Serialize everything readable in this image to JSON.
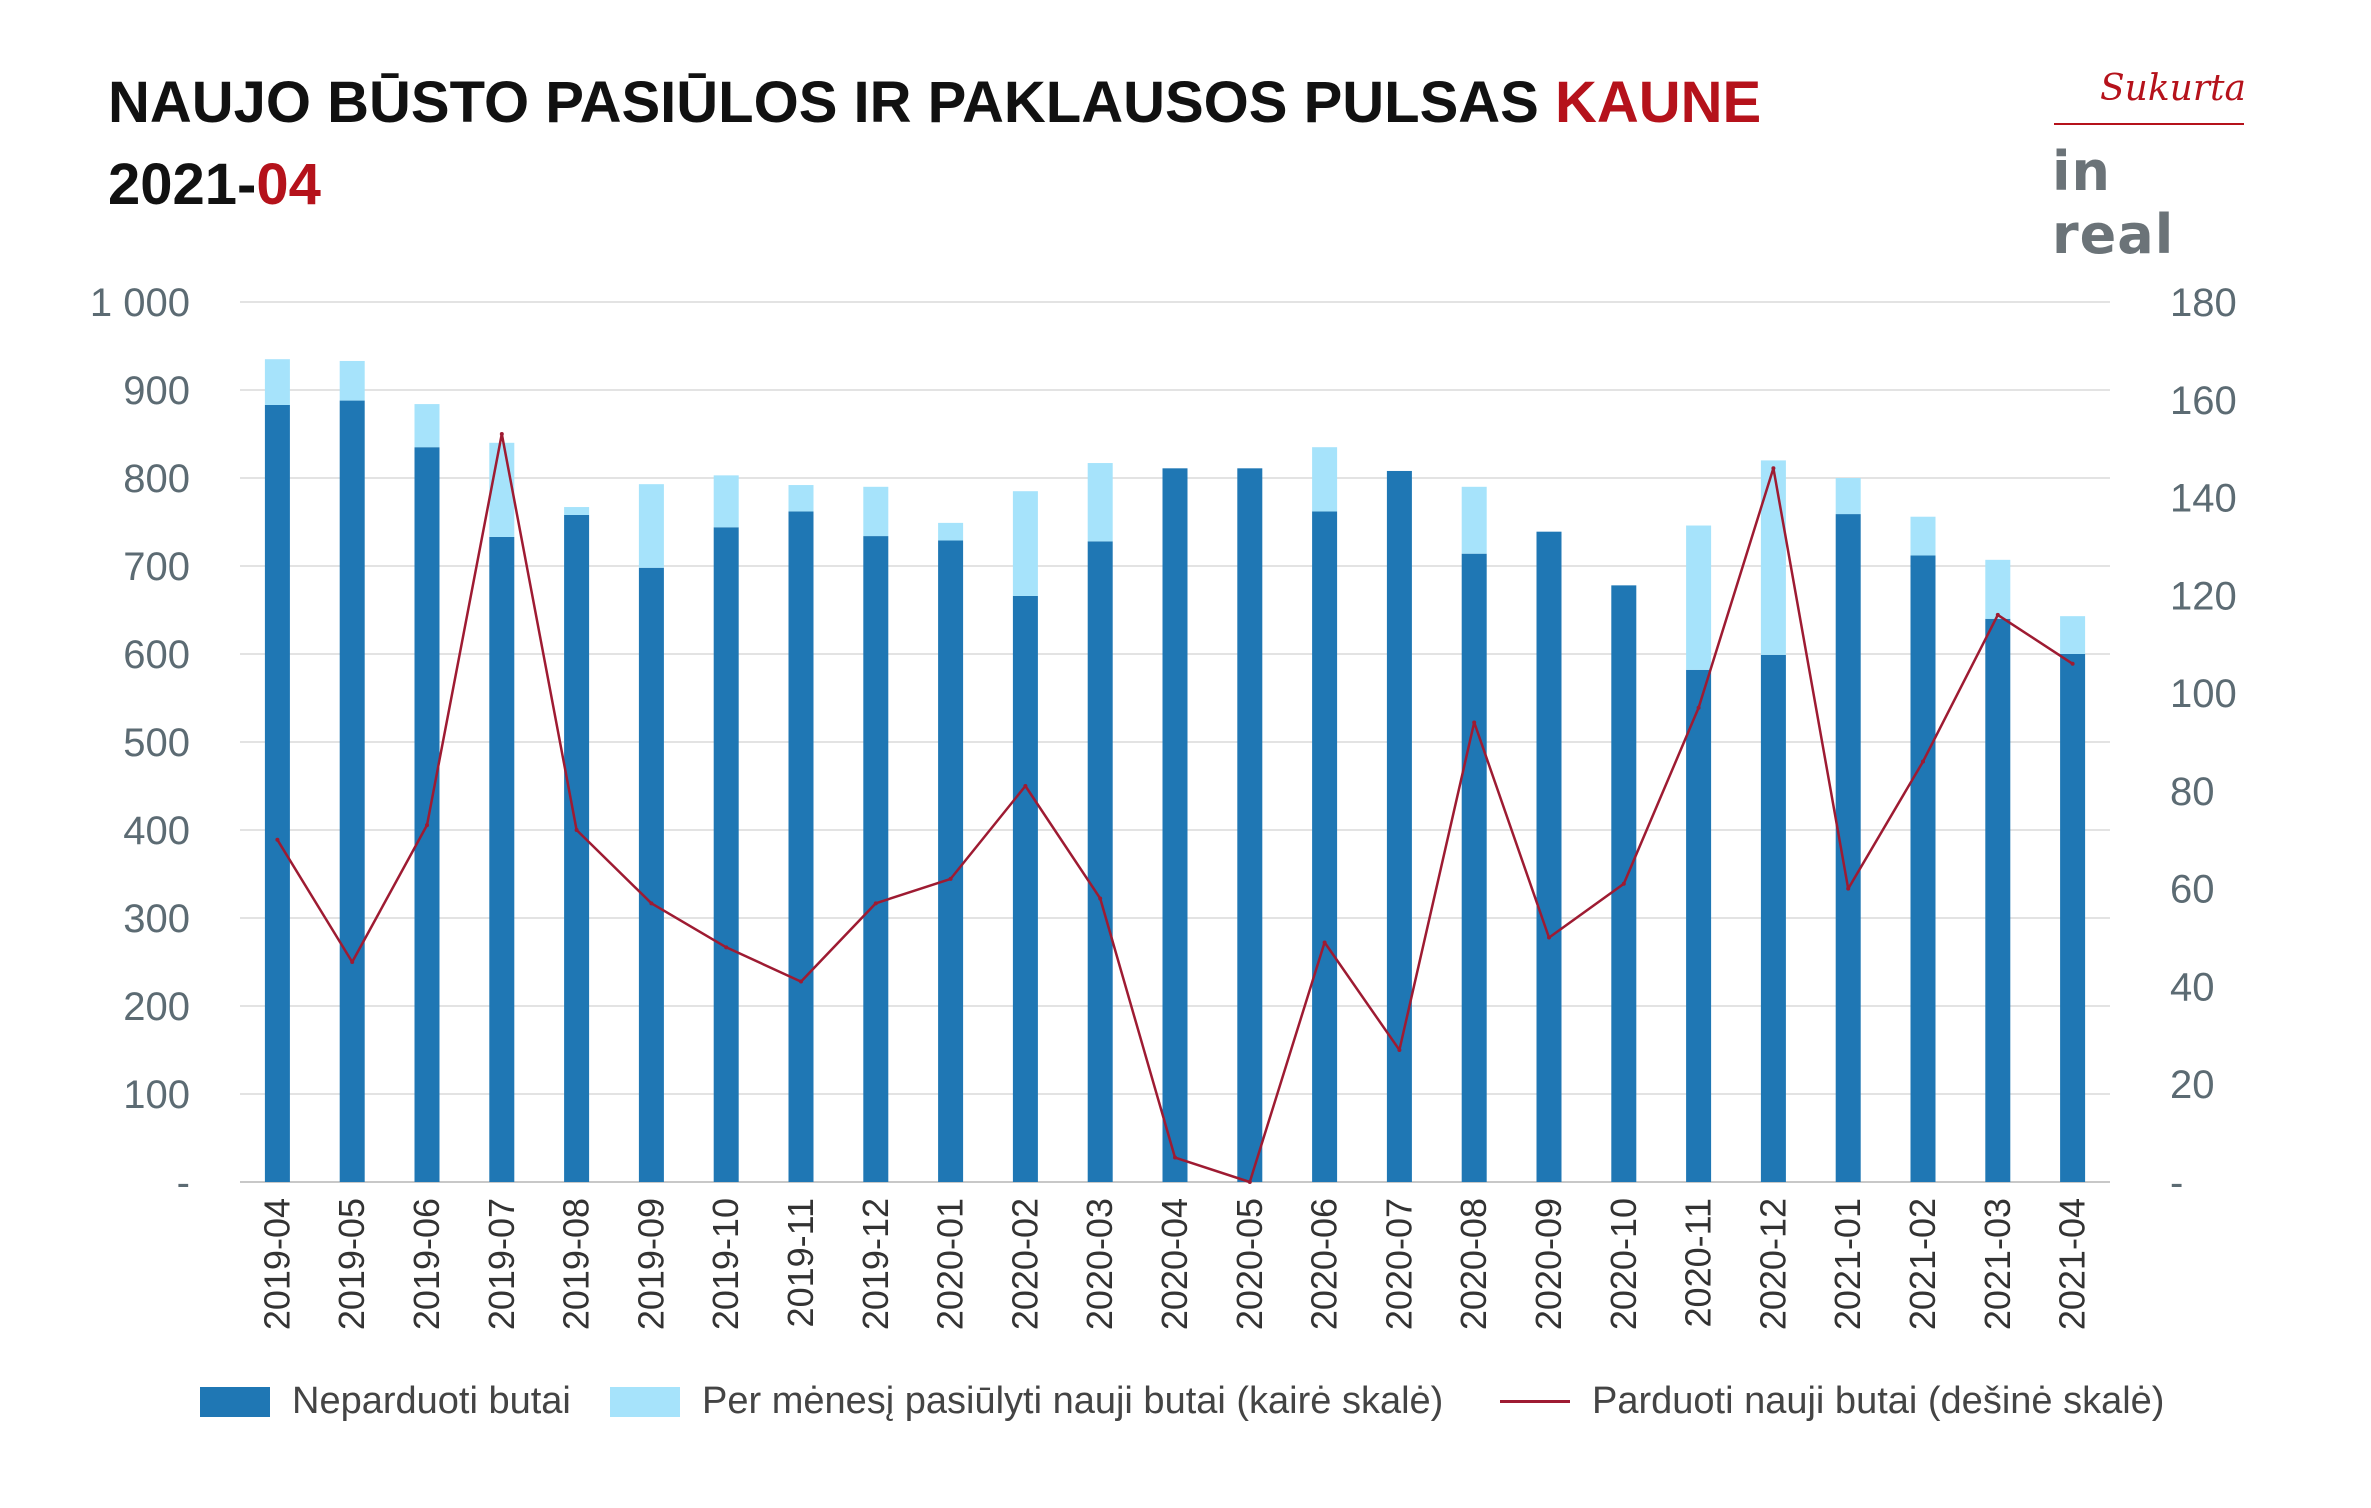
{
  "header": {
    "title_main": "NAUJO BŪSTO PASIŪLOS IR PAKLAUSOS PULSAS ",
    "title_accent": "KAUNE",
    "subtitle_main": "2021-",
    "subtitle_accent": "04"
  },
  "logo": {
    "script_text": "Sukurta",
    "brand_text": "in real"
  },
  "colors": {
    "unsold": "#1f77b4",
    "offered": "#a6e3fb",
    "sold": "#9e1b32",
    "accent": "#b5121b"
  },
  "chart_data": {
    "type": "bar",
    "stacked": true,
    "categories": [
      "2019-04",
      "2019-05",
      "2019-06",
      "2019-07",
      "2019-08",
      "2019-09",
      "2019-10",
      "2019-11",
      "2019-12",
      "2020-01",
      "2020-02",
      "2020-03",
      "2020-04",
      "2020-05",
      "2020-06",
      "2020-07",
      "2020-08",
      "2020-09",
      "2020-10",
      "2020-11",
      "2020-12",
      "2021-01",
      "2021-02",
      "2021-03",
      "2021-04"
    ],
    "series": [
      {
        "name": "Neparduoti butai",
        "axis": "left",
        "kind": "bar",
        "values": [
          883,
          888,
          835,
          733,
          758,
          698,
          744,
          762,
          734,
          729,
          666,
          728,
          811,
          811,
          762,
          808,
          714,
          739,
          678,
          582,
          599,
          759,
          712,
          640,
          600
        ]
      },
      {
        "name": "Per mėnesį pasiūlyti nauji butai (kairė skalė)",
        "axis": "left",
        "kind": "bar",
        "values": [
          52,
          45,
          49,
          107,
          9,
          95,
          59,
          30,
          56,
          20,
          119,
          89,
          0,
          0,
          73,
          0,
          76,
          0,
          0,
          164,
          221,
          41,
          44,
          67,
          43
        ]
      },
      {
        "name": "Parduoti nauji butai (dešinė skalė)",
        "axis": "right",
        "kind": "line",
        "values": [
          70,
          45,
          73,
          153,
          72,
          57,
          48,
          41,
          57,
          62,
          81,
          58,
          5,
          0,
          49,
          27,
          94,
          50,
          61,
          97,
          146,
          60,
          86,
          116,
          106
        ]
      }
    ],
    "y_left": {
      "min": 0,
      "max": 1000,
      "ticks": [
        0,
        100,
        200,
        300,
        400,
        500,
        600,
        700,
        800,
        900,
        1000
      ],
      "tick_labels": [
        "-",
        "100",
        "200",
        "300",
        "400",
        "500",
        "600",
        "700",
        "800",
        "900",
        "1 000"
      ]
    },
    "y_right": {
      "min": 0,
      "max": 180,
      "ticks": [
        0,
        20,
        40,
        60,
        80,
        100,
        120,
        140,
        160,
        180
      ],
      "tick_labels": [
        "-",
        "20",
        "40",
        "60",
        "80",
        "100",
        "120",
        "140",
        "160",
        "180"
      ]
    },
    "grid": true,
    "legend_position": "bottom"
  }
}
